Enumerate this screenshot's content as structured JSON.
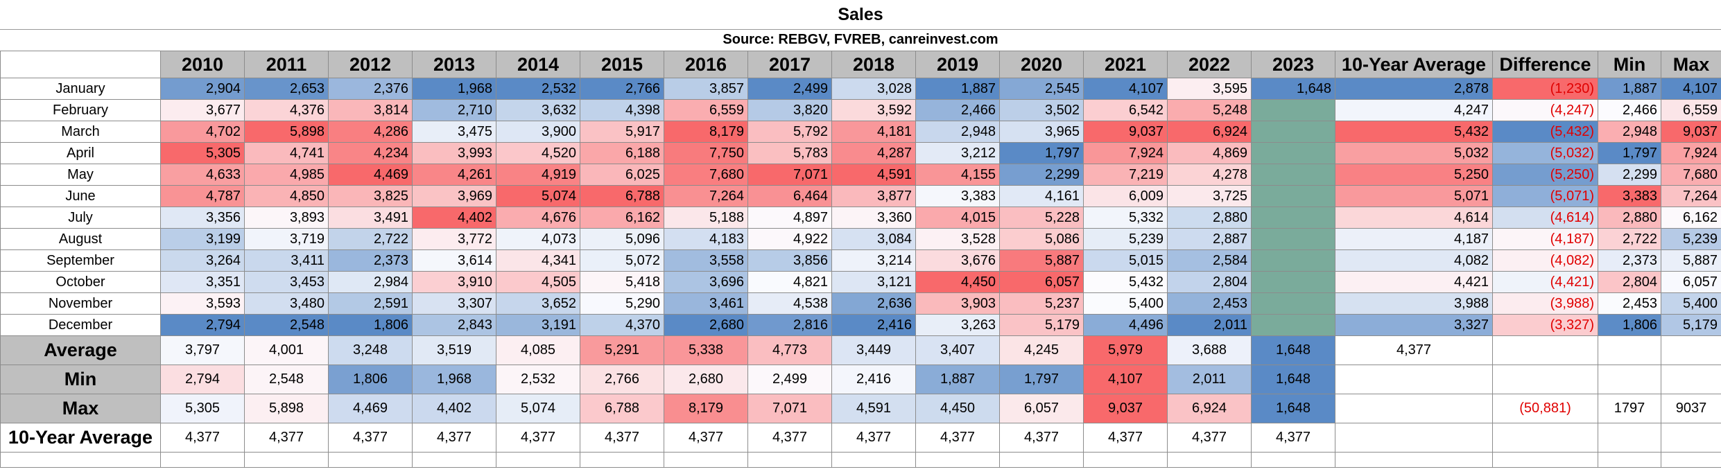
{
  "title": "Sales",
  "subtitle": "Source: REBGV, FVREB, canreinvest.com",
  "headers": [
    "2010",
    "2011",
    "2012",
    "2013",
    "2014",
    "2015",
    "2016",
    "2017",
    "2018",
    "2019",
    "2020",
    "2021",
    "2022",
    "2023",
    "10-Year Average",
    "Difference",
    "Min",
    "Max"
  ],
  "months": [
    {
      "label": "January",
      "values": [
        "2,904",
        "2,653",
        "2,376",
        "1,968",
        "2,532",
        "2,766",
        "3,857",
        "2,499",
        "3,028",
        "1,887",
        "2,545",
        "4,107",
        "3,595",
        "1,648"
      ],
      "avg": "2,878",
      "diff": "(1,230)",
      "min": "1,887",
      "max": "4,107"
    },
    {
      "label": "February",
      "values": [
        "3,677",
        "4,376",
        "3,814",
        "2,710",
        "3,632",
        "4,398",
        "6,559",
        "3,820",
        "3,592",
        "2,466",
        "3,502",
        "6,542",
        "5,248",
        ""
      ],
      "avg": "4,247",
      "diff": "(4,247)",
      "min": "2,466",
      "max": "6,559"
    },
    {
      "label": "March",
      "values": [
        "4,702",
        "5,898",
        "4,286",
        "3,475",
        "3,900",
        "5,917",
        "8,179",
        "5,792",
        "4,181",
        "2,948",
        "3,965",
        "9,037",
        "6,924",
        ""
      ],
      "avg": "5,432",
      "diff": "(5,432)",
      "min": "2,948",
      "max": "9,037"
    },
    {
      "label": "April",
      "values": [
        "5,305",
        "4,741",
        "4,234",
        "3,993",
        "4,520",
        "6,188",
        "7,750",
        "5,783",
        "4,287",
        "3,212",
        "1,797",
        "7,924",
        "4,869",
        ""
      ],
      "avg": "5,032",
      "diff": "(5,032)",
      "min": "1,797",
      "max": "7,924"
    },
    {
      "label": "May",
      "values": [
        "4,633",
        "4,985",
        "4,469",
        "4,261",
        "4,919",
        "6,025",
        "7,680",
        "7,071",
        "4,591",
        "4,155",
        "2,299",
        "7,219",
        "4,278",
        ""
      ],
      "avg": "5,250",
      "diff": "(5,250)",
      "min": "2,299",
      "max": "7,680"
    },
    {
      "label": "June",
      "values": [
        "4,787",
        "4,850",
        "3,825",
        "3,969",
        "5,074",
        "6,788",
        "7,264",
        "6,464",
        "3,877",
        "3,383",
        "4,161",
        "6,009",
        "3,725",
        ""
      ],
      "avg": "5,071",
      "diff": "(5,071)",
      "min": "3,383",
      "max": "7,264"
    },
    {
      "label": "July",
      "values": [
        "3,356",
        "3,893",
        "3,491",
        "4,402",
        "4,676",
        "6,162",
        "5,188",
        "4,897",
        "3,360",
        "4,015",
        "5,228",
        "5,332",
        "2,880",
        ""
      ],
      "avg": "4,614",
      "diff": "(4,614)",
      "min": "2,880",
      "max": "6,162"
    },
    {
      "label": "August",
      "values": [
        "3,199",
        "3,719",
        "2,722",
        "3,772",
        "4,073",
        "5,096",
        "4,183",
        "4,922",
        "3,084",
        "3,528",
        "5,086",
        "5,239",
        "2,887",
        ""
      ],
      "avg": "4,187",
      "diff": "(4,187)",
      "min": "2,722",
      "max": "5,239"
    },
    {
      "label": "September",
      "values": [
        "3,264",
        "3,411",
        "2,373",
        "3,614",
        "4,341",
        "5,072",
        "3,558",
        "3,856",
        "3,214",
        "3,676",
        "5,887",
        "5,015",
        "2,584",
        ""
      ],
      "avg": "4,082",
      "diff": "(4,082)",
      "min": "2,373",
      "max": "5,887"
    },
    {
      "label": "October",
      "values": [
        "3,351",
        "3,453",
        "2,984",
        "3,910",
        "4,505",
        "5,418",
        "3,696",
        "4,821",
        "3,121",
        "4,450",
        "6,057",
        "5,432",
        "2,804",
        ""
      ],
      "avg": "4,421",
      "diff": "(4,421)",
      "min": "2,804",
      "max": "6,057"
    },
    {
      "label": "November",
      "values": [
        "3,593",
        "3,480",
        "2,591",
        "3,307",
        "3,652",
        "5,290",
        "3,461",
        "4,538",
        "2,636",
        "3,903",
        "5,237",
        "5,400",
        "2,453",
        ""
      ],
      "avg": "3,988",
      "diff": "(3,988)",
      "min": "2,453",
      "max": "5,400"
    },
    {
      "label": "December",
      "values": [
        "2,794",
        "2,548",
        "1,806",
        "2,843",
        "3,191",
        "4,370",
        "2,680",
        "2,816",
        "2,416",
        "3,263",
        "5,179",
        "4,496",
        "2,011",
        ""
      ],
      "avg": "3,327",
      "diff": "(3,327)",
      "min": "1,806",
      "max": "5,179"
    }
  ],
  "summary": [
    {
      "label": "Average",
      "values": [
        "3,797",
        "4,001",
        "3,248",
        "3,519",
        "4,085",
        "5,291",
        "5,338",
        "4,773",
        "3,449",
        "3,407",
        "4,245",
        "5,979",
        "3,688",
        "1,648"
      ],
      "avg": "4,377",
      "diff": "",
      "min": "",
      "max": ""
    },
    {
      "label": "Min",
      "values": [
        "2,794",
        "2,548",
        "1,806",
        "1,968",
        "2,532",
        "2,766",
        "2,680",
        "2,499",
        "2,416",
        "1,887",
        "1,797",
        "4,107",
        "2,011",
        "1,648"
      ],
      "avg": "",
      "diff": "",
      "min": "",
      "max": ""
    },
    {
      "label": "Max",
      "values": [
        "5,305",
        "5,898",
        "4,469",
        "4,402",
        "5,074",
        "6,788",
        "8,179",
        "7,071",
        "4,591",
        "4,450",
        "6,057",
        "9,037",
        "6,924",
        "1,648"
      ],
      "avg": "",
      "diff": "(50,881)",
      "min": "1797",
      "max": "9037"
    },
    {
      "label": "10-Year Average",
      "values": [
        "4,377",
        "4,377",
        "4,377",
        "4,377",
        "4,377",
        "4,377",
        "4,377",
        "4,377",
        "4,377",
        "4,377",
        "4,377",
        "4,377",
        "4,377",
        "4,377"
      ],
      "avg": "",
      "diff": "",
      "min": "",
      "max": ""
    }
  ],
  "colors": {
    "header_fill": "#bfbfbf",
    "low_color": "#5a8ac6",
    "mid_color": "#fcfcff",
    "high_color": "#f8696b",
    "empty_2023_fill": "#7aab9b",
    "negative_text": "#e00000"
  }
}
